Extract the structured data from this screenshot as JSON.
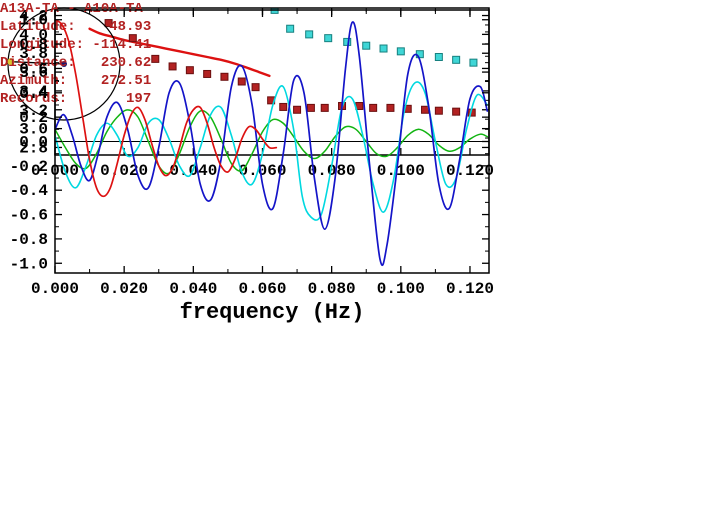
{
  "info": {
    "lines": [
      "A13A-TA - A10A-TA",
      "Latitude:    48.93",
      "Longitude: -114.41",
      "Distance:   230.62",
      "Azimuth:    272.51",
      "Records:       197"
    ]
  },
  "colors": {
    "frame": "#000000",
    "info_text": "#b22222",
    "red_line": "#dd1111",
    "red_square": "#b22222",
    "cyan_square": "#3fd6d6",
    "blue_curve": "#1414c8",
    "cyan_curve": "#00d8e0",
    "green_curve": "#12b412",
    "red_curve": "#dd1111"
  },
  "chart_data": [
    {
      "id": "dispersion-plot",
      "type": "scatter",
      "title": "",
      "xlabel": "",
      "ylabel": "",
      "xlim": [
        0,
        0.1255
      ],
      "ylim": [
        2.72,
        4.28
      ],
      "grid": false,
      "legend": "none",
      "xticks": {
        "values": [
          0,
          0.02,
          0.04,
          0.06,
          0.08,
          0.1,
          0.12
        ],
        "labels": [
          "0.000",
          "0.020",
          "0.040",
          "0.060",
          "0.080",
          "0.100",
          "0.120"
        ]
      },
      "yticks": {
        "values": [
          2.8,
          3.0,
          3.2,
          3.4,
          3.6,
          3.8,
          4.0,
          4.2
        ],
        "labels": [
          "2.8",
          "3.0",
          "3.2",
          "3.4",
          "3.6",
          "3.8",
          "4.0",
          "4.2"
        ]
      },
      "xtick_minor": 0.01,
      "ytick_minor": 0.1,
      "series": [
        {
          "name": "reference-dispersion-curve",
          "type": "line",
          "color": "#dd1111",
          "width": 2.4,
          "points": [
            [
              0.01,
              4.06
            ],
            [
              0.013,
              4.01
            ],
            [
              0.016,
              3.98
            ],
            [
              0.02,
              3.94
            ],
            [
              0.024,
              3.91
            ],
            [
              0.028,
              3.88
            ],
            [
              0.032,
              3.85
            ],
            [
              0.036,
              3.82
            ],
            [
              0.04,
              3.79
            ],
            [
              0.044,
              3.76
            ],
            [
              0.048,
              3.73
            ],
            [
              0.052,
              3.69
            ],
            [
              0.056,
              3.64
            ],
            [
              0.059,
              3.6
            ],
            [
              0.062,
              3.56
            ]
          ]
        },
        {
          "name": "red-square-measurements",
          "type": "scatter",
          "marker": "square",
          "color": "#b22222",
          "edge": "#6b0f0f",
          "size": 7,
          "points": [
            [
              0.0155,
              4.12
            ],
            [
              0.0225,
              3.96
            ],
            [
              0.029,
              3.74
            ],
            [
              0.034,
              3.66
            ],
            [
              0.039,
              3.62
            ],
            [
              0.044,
              3.58
            ],
            [
              0.049,
              3.55
            ],
            [
              0.054,
              3.5
            ],
            [
              0.058,
              3.44
            ],
            [
              0.0625,
              3.3
            ],
            [
              0.066,
              3.23
            ],
            [
              0.07,
              3.2
            ],
            [
              0.074,
              3.22
            ],
            [
              0.078,
              3.22
            ],
            [
              0.083,
              3.24
            ],
            [
              0.088,
              3.24
            ],
            [
              0.092,
              3.22
            ],
            [
              0.097,
              3.22
            ],
            [
              0.102,
              3.21
            ],
            [
              0.107,
              3.2
            ],
            [
              0.111,
              3.19
            ],
            [
              0.116,
              3.18
            ],
            [
              0.1205,
              3.17
            ]
          ]
        },
        {
          "name": "cyan-square-measurements",
          "type": "scatter",
          "marker": "square",
          "color": "#3fd6d6",
          "edge": "#17807f",
          "size": 7,
          "points": [
            [
              0.0635,
              4.26
            ],
            [
              0.068,
              4.06
            ],
            [
              0.0735,
              4.0
            ],
            [
              0.079,
              3.96
            ],
            [
              0.0845,
              3.92
            ],
            [
              0.09,
              3.88
            ],
            [
              0.095,
              3.85
            ],
            [
              0.1,
              3.82
            ],
            [
              0.1055,
              3.79
            ],
            [
              0.111,
              3.76
            ],
            [
              0.116,
              3.73
            ],
            [
              0.121,
              3.7
            ]
          ]
        }
      ]
    },
    {
      "id": "waveform-plot",
      "type": "line",
      "title": "",
      "xlabel": "frequency (Hz)",
      "ylabel": "",
      "xlim": [
        0,
        0.1255
      ],
      "ylim": [
        -1.08,
        1.08
      ],
      "grid": false,
      "legend": "none",
      "zero_line": true,
      "xticks": {
        "values": [
          0,
          0.02,
          0.04,
          0.06,
          0.08,
          0.1,
          0.12
        ],
        "labels": [
          "0.000",
          "0.020",
          "0.040",
          "0.060",
          "0.080",
          "0.100",
          "0.120"
        ]
      },
      "yticks": {
        "values": [
          -1.0,
          -0.8,
          -0.6,
          -0.4,
          -0.2,
          0.0,
          0.2,
          0.4,
          0.6,
          0.8,
          1.0
        ],
        "labels": [
          "-1.0",
          "-0.8",
          "-0.6",
          "-0.4",
          "-0.2",
          "0.0",
          "0.2",
          "0.4",
          "0.6",
          "0.8",
          "1.0"
        ]
      },
      "xtick_minor": 0.01,
      "ytick_minor": 0.1,
      "series": [
        {
          "name": "green-spectrum",
          "type": "line",
          "color": "#12b412",
          "width": 1.5,
          "points": [
            [
              0.0,
              0.1
            ],
            [
              0.003,
              -0.05
            ],
            [
              0.006,
              -0.18
            ],
            [
              0.009,
              -0.22
            ],
            [
              0.012,
              -0.1
            ],
            [
              0.015,
              0.08
            ],
            [
              0.018,
              0.2
            ],
            [
              0.021,
              0.26
            ],
            [
              0.024,
              0.2
            ],
            [
              0.027,
              0.0
            ],
            [
              0.03,
              -0.2
            ],
            [
              0.033,
              -0.26
            ],
            [
              0.036,
              -0.1
            ],
            [
              0.039,
              0.12
            ],
            [
              0.042,
              0.25
            ],
            [
              0.045,
              0.2
            ],
            [
              0.048,
              0.02
            ],
            [
              0.051,
              -0.18
            ],
            [
              0.054,
              -0.24
            ],
            [
              0.057,
              -0.1
            ],
            [
              0.06,
              0.08
            ],
            [
              0.063,
              0.18
            ],
            [
              0.066,
              0.15
            ],
            [
              0.069,
              0.04
            ],
            [
              0.072,
              -0.08
            ],
            [
              0.075,
              -0.14
            ],
            [
              0.078,
              -0.08
            ],
            [
              0.081,
              0.04
            ],
            [
              0.084,
              0.12
            ],
            [
              0.087,
              0.1
            ],
            [
              0.09,
              0.0
            ],
            [
              0.093,
              -0.1
            ],
            [
              0.096,
              -0.12
            ],
            [
              0.099,
              -0.05
            ],
            [
              0.102,
              0.05
            ],
            [
              0.105,
              0.1
            ],
            [
              0.108,
              0.06
            ],
            [
              0.111,
              -0.03
            ],
            [
              0.114,
              -0.08
            ],
            [
              0.117,
              -0.05
            ],
            [
              0.12,
              0.02
            ],
            [
              0.123,
              0.06
            ],
            [
              0.125,
              0.04
            ]
          ]
        },
        {
          "name": "cyan-spectrum",
          "type": "line",
          "color": "#00d8e0",
          "width": 1.6,
          "points": [
            [
              0.0,
              0.05
            ],
            [
              0.003,
              -0.25
            ],
            [
              0.006,
              -0.38
            ],
            [
              0.009,
              -0.2
            ],
            [
              0.012,
              0.05
            ],
            [
              0.015,
              0.15
            ],
            [
              0.018,
              0.05
            ],
            [
              0.021,
              -0.12
            ],
            [
              0.024,
              -0.05
            ],
            [
              0.027,
              0.15
            ],
            [
              0.03,
              0.18
            ],
            [
              0.033,
              0.02
            ],
            [
              0.036,
              -0.2
            ],
            [
              0.039,
              -0.28
            ],
            [
              0.042,
              -0.05
            ],
            [
              0.045,
              0.22
            ],
            [
              0.048,
              0.28
            ],
            [
              0.051,
              0.05
            ],
            [
              0.054,
              -0.25
            ],
            [
              0.057,
              -0.35
            ],
            [
              0.06,
              -0.1
            ],
            [
              0.063,
              0.3
            ],
            [
              0.066,
              0.45
            ],
            [
              0.069,
              0.1
            ],
            [
              0.0715,
              -0.45
            ],
            [
              0.074,
              -0.62
            ],
            [
              0.077,
              -0.6
            ],
            [
              0.08,
              -0.2
            ],
            [
              0.083,
              0.28
            ],
            [
              0.086,
              0.35
            ],
            [
              0.089,
              0.05
            ],
            [
              0.092,
              -0.35
            ],
            [
              0.095,
              -0.58
            ],
            [
              0.098,
              -0.3
            ],
            [
              0.101,
              0.25
            ],
            [
              0.104,
              0.48
            ],
            [
              0.107,
              0.4
            ],
            [
              0.11,
              0.0
            ],
            [
              0.113,
              -0.35
            ],
            [
              0.116,
              -0.3
            ],
            [
              0.119,
              0.1
            ],
            [
              0.122,
              0.38
            ],
            [
              0.125,
              0.3
            ]
          ]
        },
        {
          "name": "blue-spectrum",
          "type": "line",
          "color": "#1414c8",
          "width": 1.7,
          "points": [
            [
              0.0,
              0.1
            ],
            [
              0.0025,
              0.22
            ],
            [
              0.005,
              0.05
            ],
            [
              0.0075,
              -0.2
            ],
            [
              0.01,
              -0.32
            ],
            [
              0.0125,
              -0.1
            ],
            [
              0.015,
              0.2
            ],
            [
              0.018,
              0.32
            ],
            [
              0.021,
              0.1
            ],
            [
              0.024,
              -0.28
            ],
            [
              0.027,
              -0.38
            ],
            [
              0.03,
              -0.05
            ],
            [
              0.033,
              0.4
            ],
            [
              0.036,
              0.48
            ],
            [
              0.039,
              0.15
            ],
            [
              0.042,
              -0.35
            ],
            [
              0.045,
              -0.48
            ],
            [
              0.048,
              -0.15
            ],
            [
              0.051,
              0.45
            ],
            [
              0.054,
              0.62
            ],
            [
              0.057,
              0.3
            ],
            [
              0.06,
              -0.35
            ],
            [
              0.063,
              -0.55
            ],
            [
              0.066,
              -0.1
            ],
            [
              0.069,
              0.5
            ],
            [
              0.072,
              0.4
            ],
            [
              0.075,
              -0.3
            ],
            [
              0.078,
              -0.72
            ],
            [
              0.081,
              -0.3
            ],
            [
              0.084,
              0.6
            ],
            [
              0.086,
              0.98
            ],
            [
              0.088,
              0.7
            ],
            [
              0.091,
              -0.2
            ],
            [
              0.094,
              -0.97
            ],
            [
              0.096,
              -0.85
            ],
            [
              0.099,
              -0.2
            ],
            [
              0.102,
              0.55
            ],
            [
              0.105,
              0.7
            ],
            [
              0.108,
              0.3
            ],
            [
              0.111,
              -0.35
            ],
            [
              0.114,
              -0.55
            ],
            [
              0.117,
              -0.15
            ],
            [
              0.12,
              0.35
            ],
            [
              0.123,
              0.45
            ],
            [
              0.125,
              0.25
            ]
          ]
        },
        {
          "name": "red-spectrum",
          "type": "line",
          "color": "#dd1111",
          "width": 1.7,
          "points": [
            [
              0.0,
              1.0
            ],
            [
              0.002,
              0.96
            ],
            [
              0.004,
              0.82
            ],
            [
              0.006,
              0.55
            ],
            [
              0.008,
              0.2
            ],
            [
              0.01,
              -0.15
            ],
            [
              0.012,
              -0.38
            ],
            [
              0.014,
              -0.45
            ],
            [
              0.016,
              -0.38
            ],
            [
              0.018,
              -0.18
            ],
            [
              0.02,
              0.05
            ],
            [
              0.022,
              0.22
            ],
            [
              0.024,
              0.28
            ],
            [
              0.026,
              0.18
            ],
            [
              0.028,
              -0.02
            ],
            [
              0.03,
              -0.2
            ],
            [
              0.032,
              -0.28
            ],
            [
              0.034,
              -0.22
            ],
            [
              0.036,
              -0.05
            ],
            [
              0.038,
              0.15
            ],
            [
              0.04,
              0.26
            ],
            [
              0.042,
              0.28
            ],
            [
              0.044,
              0.15
            ],
            [
              0.046,
              -0.05
            ],
            [
              0.048,
              -0.2
            ],
            [
              0.05,
              -0.25
            ],
            [
              0.052,
              -0.15
            ],
            [
              0.054,
              0.02
            ],
            [
              0.056,
              0.12
            ],
            [
              0.058,
              0.1
            ],
            [
              0.06,
              0.02
            ],
            [
              0.062,
              -0.05
            ],
            [
              0.064,
              -0.05
            ]
          ]
        }
      ]
    },
    {
      "id": "azimuth-diagram",
      "type": "other",
      "azimuth_deg": 272.51,
      "circle_color": "#000000",
      "line_color": "#000000",
      "center_dot_color": "#191970",
      "direction_dot_color": "#d6c62e"
    }
  ]
}
